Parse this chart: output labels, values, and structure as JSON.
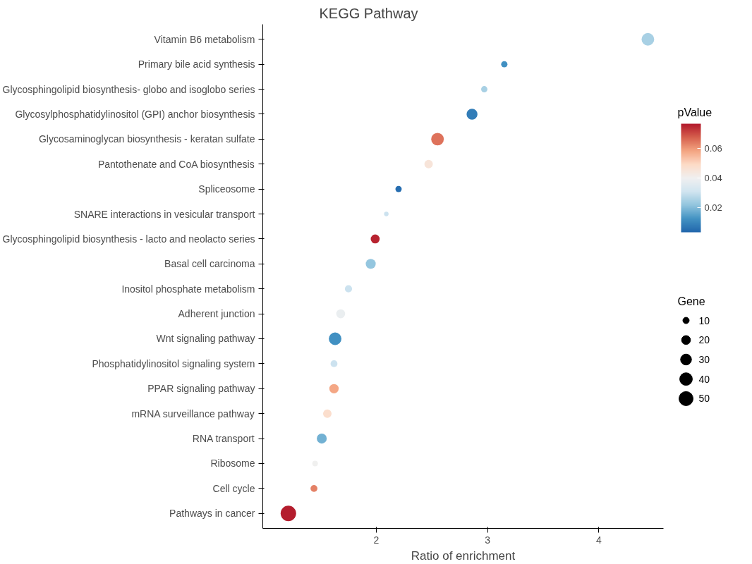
{
  "chart_data": {
    "type": "bubble",
    "orientation": "horizontal",
    "title": "KEGG Pathway",
    "xlabel": "Ratio of enrichment",
    "clabel": "pValue",
    "legend_title": "Gene",
    "categories": [
      "Vitamin B6 metabolism",
      "Primary bile acid synthesis",
      "Glycosphingolipid biosynthesis- globo and isoglobo series",
      "Glycosylphosphatidylinositol (GPI) anchor biosynthesis",
      "Glycosaminoglycan biosynthesis - keratan sulfate",
      "Pantothenate and CoA biosynthesis",
      "Spliceosome",
      "SNARE interactions in vesicular transport",
      "Glycosphingolipid biosynthesis - lacto and neolacto series",
      "Basal cell carcinoma",
      "Inositol phosphate metabolism",
      "Adherent junction",
      "Wnt signaling pathway",
      "Phosphatidylinositol signaling system",
      "PPAR signaling pathway",
      "mRNA surveillance pathway",
      "RNA transport",
      "Ribosome",
      "Cell cycle",
      "Pathways in cancer"
    ],
    "values": [
      4.44,
      3.15,
      2.97,
      2.86,
      2.55,
      2.47,
      2.2,
      2.09,
      1.99,
      1.95,
      1.75,
      1.68,
      1.63,
      1.62,
      1.62,
      1.56,
      1.51,
      1.45,
      1.44,
      1.21
    ],
    "sizes": [
      40,
      10,
      10,
      30,
      40,
      18,
      10,
      5,
      20,
      25,
      13,
      20,
      40,
      12,
      22,
      18,
      25,
      8,
      12,
      60
    ],
    "cvalues": [
      0.025,
      0.012,
      0.025,
      0.008,
      0.065,
      0.045,
      0.005,
      0.03,
      0.075,
      0.022,
      0.03,
      0.038,
      0.012,
      0.03,
      0.058,
      0.048,
      0.018,
      0.04,
      0.063,
      0.076
    ],
    "size_legend": [
      10,
      20,
      30,
      40,
      50
    ],
    "clim": [
      0.0033,
      0.0767
    ],
    "cticks": [
      0.02,
      0.04,
      0.06
    ],
    "xlim": [
      0.98,
      4.58
    ],
    "xticks": [
      2,
      3,
      4
    ],
    "grid": false,
    "marker": "circle"
  }
}
